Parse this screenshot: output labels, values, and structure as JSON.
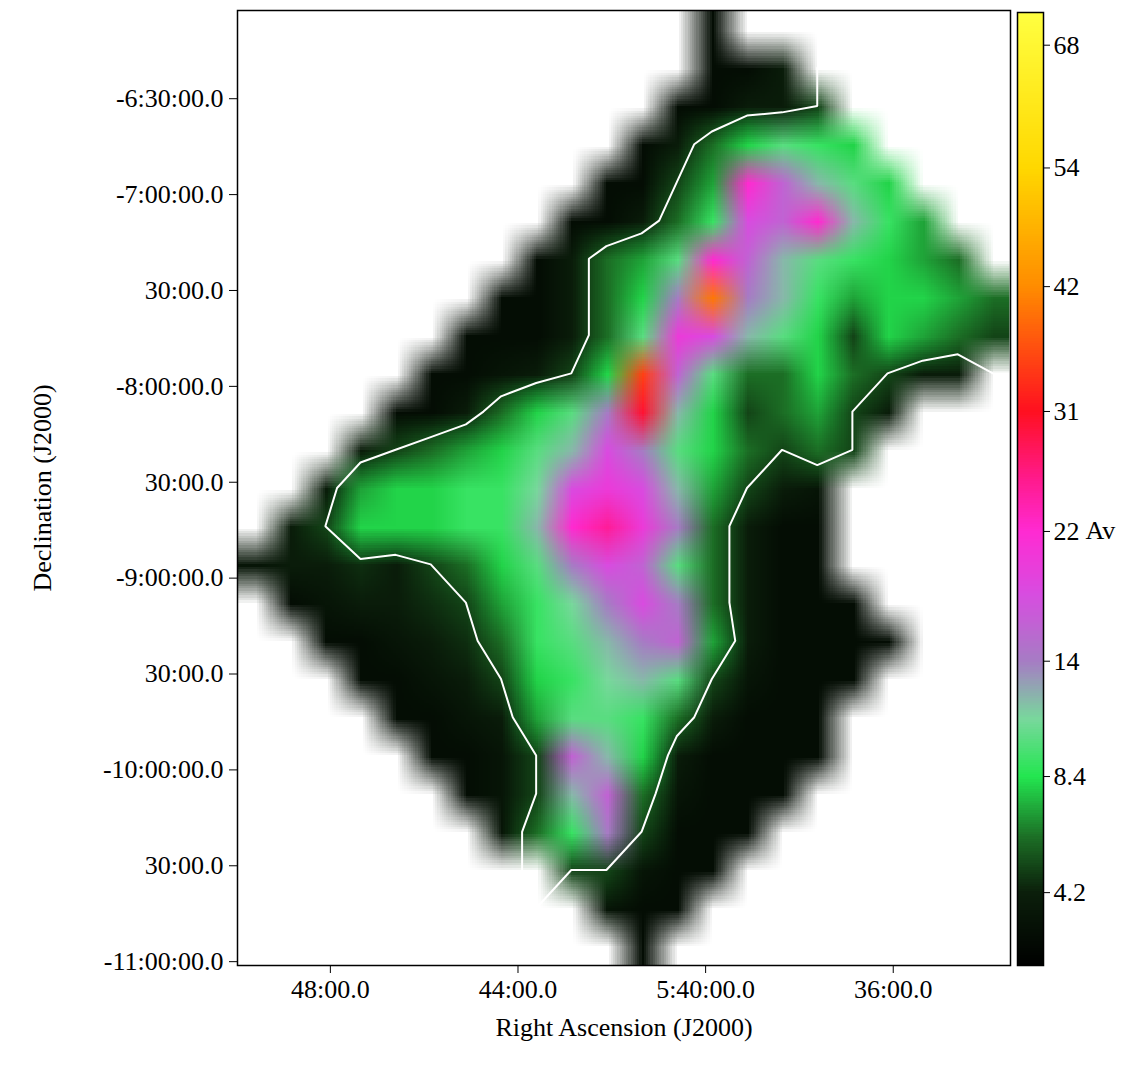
{
  "chart_data": {
    "type": "heatmap",
    "x_label": "Right Ascension (J2000)",
    "y_label": "Declination (J2000)",
    "xlim": [
      49.98,
      33.5
    ],
    "ylim": [
      -11.02,
      -6.04
    ],
    "xticks": [
      {
        "value": 48,
        "label": "48:00.0"
      },
      {
        "value": 44,
        "label": "44:00.0"
      },
      {
        "value": 40,
        "label": "5:40:00.0"
      },
      {
        "value": 36,
        "label": "36:00.0"
      }
    ],
    "yticks": [
      {
        "value": -6.5,
        "label": "-6:30:00.0"
      },
      {
        "value": -7,
        "label": "-7:00:00.0"
      },
      {
        "value": -7.5,
        "label": "30:00.0"
      },
      {
        "value": -8,
        "label": "-8:00:00.0"
      },
      {
        "value": -8.5,
        "label": "30:00.0"
      },
      {
        "value": -9,
        "label": "-9:00:00.0"
      },
      {
        "value": -9.5,
        "label": "30:00.0"
      },
      {
        "value": -10,
        "label": "-10:00:00.0"
      },
      {
        "value": -10.5,
        "label": "30:00.0"
      },
      {
        "value": -11,
        "label": "-11:00:00.0"
      }
    ],
    "colorbar": {
      "label": "Av",
      "range": [
        2.3,
        72
      ],
      "ticks": [
        4.2,
        8.4,
        14,
        22,
        31,
        42,
        54,
        68
      ]
    },
    "contour_level": 5,
    "cells": [
      [
        null,
        null,
        null,
        null,
        null,
        null,
        null,
        null,
        null,
        null,
        null,
        null,
        null,
        3,
        null,
        null,
        null,
        null,
        null,
        null,
        null,
        null
      ],
      [
        null,
        null,
        null,
        null,
        null,
        null,
        null,
        null,
        null,
        null,
        null,
        null,
        null,
        3,
        3,
        4,
        null,
        null,
        null,
        null,
        null,
        null
      ],
      [
        null,
        null,
        null,
        null,
        null,
        null,
        null,
        null,
        null,
        null,
        null,
        null,
        3,
        3,
        4,
        4,
        5,
        null,
        null,
        null,
        null,
        null
      ],
      [
        null,
        null,
        null,
        null,
        null,
        null,
        null,
        null,
        null,
        null,
        null,
        3,
        4,
        6,
        8,
        10,
        9,
        8,
        null,
        null,
        null,
        null
      ],
      [
        null,
        null,
        null,
        null,
        null,
        null,
        null,
        null,
        null,
        null,
        3,
        3,
        5,
        7,
        22,
        16,
        12,
        10,
        8,
        null,
        null,
        null
      ],
      [
        null,
        null,
        null,
        null,
        null,
        null,
        null,
        null,
        null,
        3,
        3,
        4,
        6,
        9,
        18,
        16,
        22,
        12,
        9,
        7,
        null,
        null
      ],
      [
        null,
        null,
        null,
        null,
        null,
        null,
        null,
        null,
        3,
        4,
        6,
        7,
        10,
        22,
        16,
        12,
        10,
        9,
        8,
        7,
        6,
        null
      ],
      [
        null,
        null,
        null,
        null,
        null,
        null,
        null,
        3,
        3,
        4,
        6,
        8,
        14,
        40,
        14,
        12,
        9,
        7,
        8,
        8,
        7,
        6
      ],
      [
        null,
        null,
        null,
        null,
        null,
        null,
        3,
        3,
        3,
        4,
        6,
        10,
        20,
        18,
        12,
        10,
        8,
        5,
        8,
        7,
        6,
        5
      ],
      [
        null,
        null,
        null,
        null,
        null,
        3,
        3,
        3.5,
        4,
        5,
        8,
        35,
        16,
        10,
        6,
        6,
        8,
        6,
        5,
        4,
        4,
        null
      ],
      [
        null,
        null,
        null,
        null,
        3,
        3,
        4,
        6,
        8,
        10,
        14,
        30,
        12,
        8,
        5,
        6,
        7,
        5,
        4,
        null,
        null,
        null
      ],
      [
        null,
        null,
        null,
        4,
        5,
        6,
        7,
        8,
        10,
        12,
        18,
        14,
        10,
        8,
        6,
        5,
        6,
        5,
        null,
        null,
        null,
        null
      ],
      [
        null,
        null,
        4,
        7,
        8,
        8,
        9,
        9,
        11,
        18,
        20,
        18,
        12,
        7,
        5,
        4,
        3.5,
        null,
        null,
        null,
        null,
        null
      ],
      [
        null,
        4,
        5,
        8,
        8,
        8,
        9,
        9,
        12,
        22,
        25,
        20,
        14,
        6,
        4,
        3,
        3,
        null,
        null,
        null,
        null,
        null
      ],
      [
        3.5,
        4,
        4,
        4.5,
        4,
        5,
        6,
        8,
        10,
        14,
        18,
        16,
        10,
        6,
        4,
        3,
        3,
        null,
        null,
        null,
        null,
        null
      ],
      [
        null,
        3,
        3.5,
        4,
        4,
        4.5,
        5,
        7,
        9,
        11,
        14,
        18,
        14,
        6,
        4,
        3,
        3,
        3,
        null,
        null,
        null,
        null
      ],
      [
        null,
        null,
        3,
        3,
        3.5,
        4,
        4.5,
        6,
        9,
        10,
        12,
        14,
        16,
        7,
        4,
        3,
        3,
        3,
        3,
        null,
        null,
        null
      ],
      [
        null,
        null,
        null,
        3,
        3,
        3.5,
        4,
        5,
        8,
        9,
        11,
        12,
        10,
        5,
        3.5,
        3,
        3,
        3,
        null,
        null,
        null,
        null
      ],
      [
        null,
        null,
        null,
        null,
        3,
        3,
        3.5,
        4,
        7,
        10,
        10,
        9,
        6,
        4,
        3,
        3,
        3,
        null,
        null,
        null,
        null,
        null
      ],
      [
        null,
        null,
        null,
        null,
        null,
        3,
        3,
        3.5,
        5,
        16,
        12,
        8,
        4,
        3,
        3,
        3,
        3,
        null,
        null,
        null,
        null,
        null
      ],
      [
        null,
        null,
        null,
        null,
        null,
        null,
        3,
        3.5,
        5,
        12,
        16,
        6,
        3.5,
        3,
        3,
        3,
        null,
        null,
        null,
        null,
        null,
        null
      ],
      [
        null,
        null,
        null,
        null,
        null,
        null,
        null,
        3.5,
        6,
        9,
        14,
        5,
        3,
        3,
        3,
        null,
        null,
        null,
        null,
        null,
        null,
        null
      ],
      [
        null,
        null,
        null,
        null,
        null,
        null,
        null,
        null,
        null,
        5,
        5,
        3.5,
        3,
        3,
        null,
        null,
        null,
        null,
        null,
        null,
        null,
        null
      ],
      [
        null,
        null,
        null,
        null,
        null,
        null,
        null,
        null,
        null,
        null,
        3.5,
        3,
        3,
        null,
        null,
        null,
        null,
        null,
        null,
        null,
        null,
        null
      ],
      [
        null,
        null,
        null,
        null,
        null,
        null,
        null,
        null,
        null,
        null,
        null,
        3,
        null,
        null,
        null,
        null,
        null,
        null,
        null,
        null,
        null,
        null
      ]
    ]
  }
}
